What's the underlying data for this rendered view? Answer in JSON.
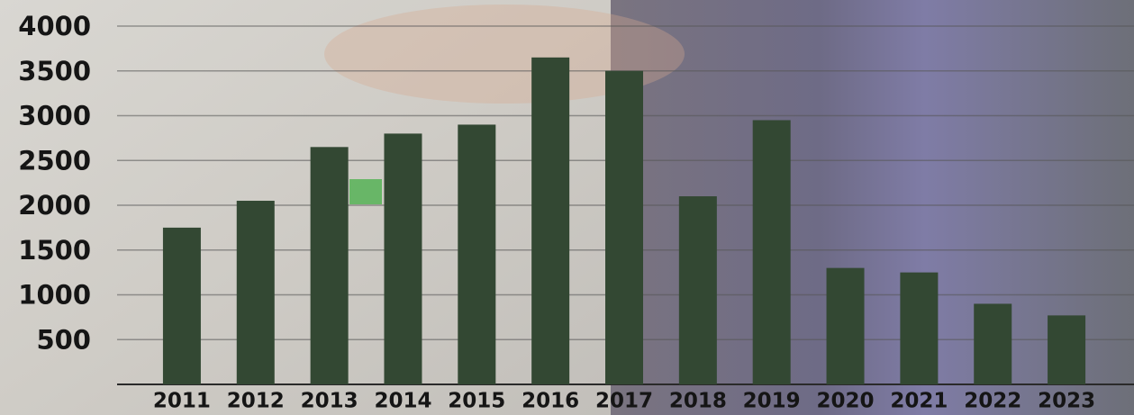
{
  "chart_data": {
    "type": "bar",
    "categories": [
      "2011",
      "2012",
      "2013",
      "2014",
      "2015",
      "2016",
      "2017",
      "2018",
      "2019",
      "2020",
      "2021",
      "2022",
      "2023"
    ],
    "values": [
      1750,
      2050,
      2650,
      2800,
      2900,
      3650,
      3500,
      2100,
      2950,
      1300,
      1250,
      900,
      770
    ],
    "color": "#334833",
    "ylim": [
      0,
      4000
    ],
    "yticks": [
      500,
      1000,
      1500,
      2000,
      2500,
      3000,
      3500,
      4000
    ],
    "grid": true
  }
}
